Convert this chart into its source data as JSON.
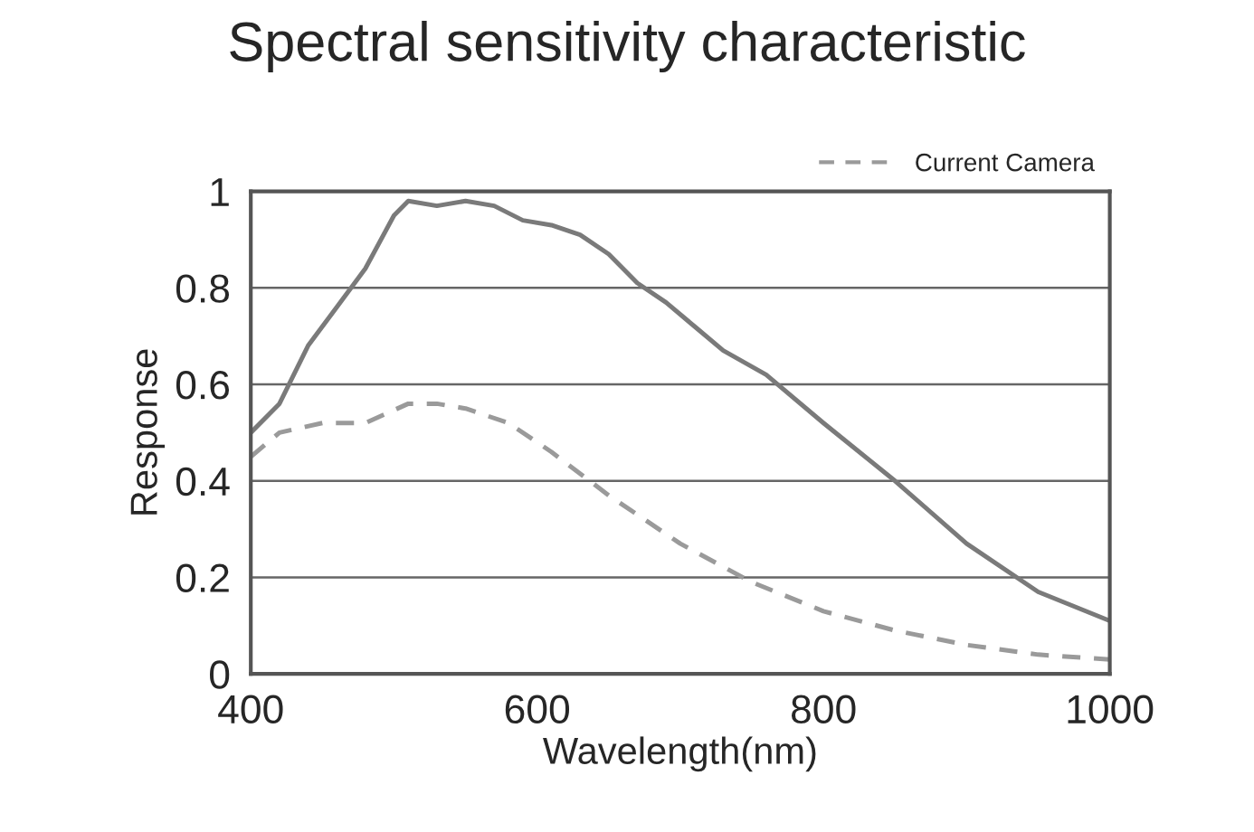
{
  "chart_data": {
    "type": "line",
    "title": "Spectral sensitivity characteristic",
    "xlabel": "Wavelength(nm)",
    "ylabel": "Response",
    "xlim": [
      400,
      1000
    ],
    "xticks": [
      400,
      600,
      800,
      1000
    ],
    "ylim": [
      0,
      1
    ],
    "yticks": [
      0,
      0.2,
      0.4,
      0.6,
      0.8,
      1
    ],
    "grid": "y",
    "legend": "top right",
    "series": [
      {
        "color": "#7a7a7a",
        "line_style": "solid",
        "x": [
          400,
          420,
          440,
          460,
          480,
          500,
          510,
          530,
          550,
          570,
          590,
          610,
          630,
          650,
          670,
          690,
          710,
          730,
          760,
          800,
          850,
          900,
          950,
          1000
        ],
        "values": [
          0.5,
          0.56,
          0.68,
          0.76,
          0.84,
          0.95,
          0.98,
          0.97,
          0.98,
          0.97,
          0.94,
          0.93,
          0.91,
          0.87,
          0.81,
          0.77,
          0.72,
          0.67,
          0.62,
          0.52,
          0.4,
          0.27,
          0.17,
          0.11
        ]
      },
      {
        "name": "Current Camera",
        "color": "#9a9a9a",
        "line_style": "dashed",
        "x": [
          400,
          420,
          450,
          480,
          510,
          530,
          550,
          580,
          610,
          650,
          700,
          750,
          800,
          850,
          900,
          950,
          1000
        ],
        "values": [
          0.45,
          0.5,
          0.52,
          0.52,
          0.56,
          0.56,
          0.55,
          0.52,
          0.46,
          0.37,
          0.27,
          0.19,
          0.13,
          0.09,
          0.06,
          0.04,
          0.03
        ]
      }
    ]
  }
}
